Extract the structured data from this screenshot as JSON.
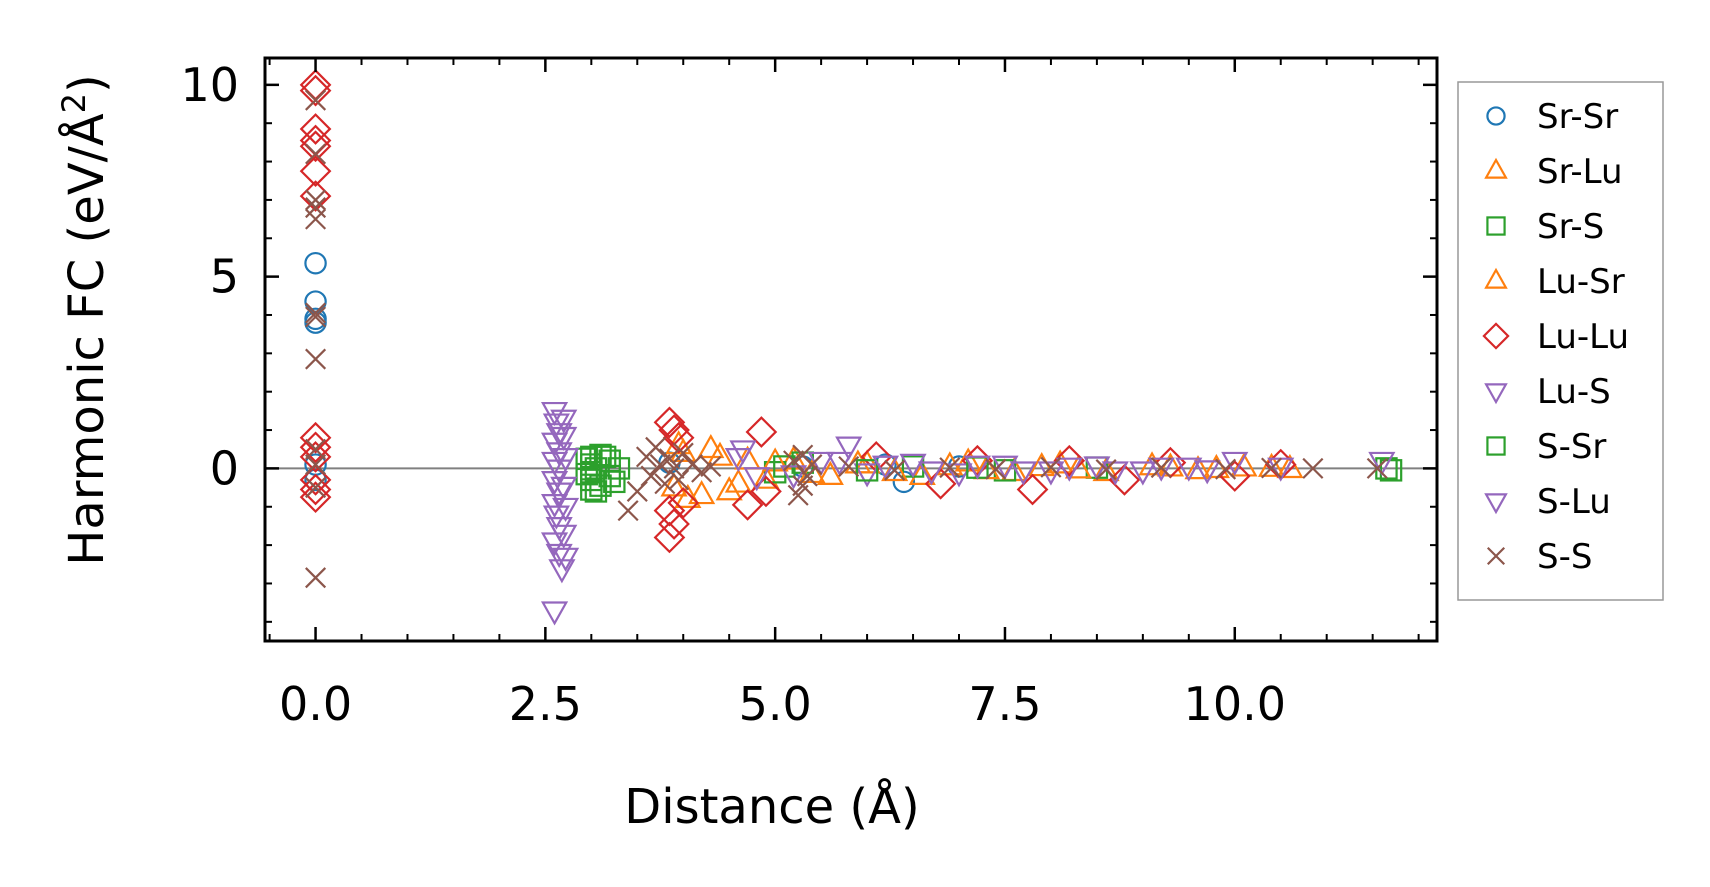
{
  "chart_data": {
    "type": "scatter",
    "title": "",
    "xlabel": "Distance (Å)",
    "ylabel_main": "Harmonic FC (eV/Å",
    "ylabel_sup": "2",
    "ylabel_close": ")",
    "xlim": [
      -0.55,
      12.2
    ],
    "ylim": [
      -4.5,
      10.7
    ],
    "xticks": [
      0.0,
      2.5,
      5.0,
      7.5,
      10.0
    ],
    "xtick_labels": [
      "0.0",
      "2.5",
      "5.0",
      "7.5",
      "10.0"
    ],
    "yticks": [
      0,
      5,
      10
    ],
    "ytick_labels": [
      "0",
      "5",
      "10"
    ],
    "zero_line": 0,
    "legend_position": "outside-right",
    "series": [
      {
        "name": "Sr-Sr",
        "marker": "circle",
        "color": "#1f77b4",
        "points": [
          [
            0,
            5.35
          ],
          [
            0,
            4.35
          ],
          [
            0,
            3.8
          ],
          [
            0,
            3.9
          ],
          [
            0,
            0.1
          ],
          [
            0,
            -0.3
          ],
          [
            6.4,
            -0.35
          ],
          [
            6.2,
            0.1
          ],
          [
            3.85,
            0.15
          ],
          [
            5.3,
            0.05
          ],
          [
            7.0,
            0.05
          ]
        ]
      },
      {
        "name": "Sr-Lu",
        "marker": "triangle-up",
        "color": "#ff7f0e",
        "points": [
          [
            3.9,
            -0.5
          ],
          [
            4.0,
            0.4
          ],
          [
            4.2,
            -0.7
          ],
          [
            4.3,
            0.5
          ],
          [
            4.5,
            -0.6
          ],
          [
            4.7,
            0.2
          ],
          [
            4.9,
            -0.3
          ],
          [
            5.2,
            0.2
          ],
          [
            5.6,
            -0.2
          ],
          [
            6.0,
            0.1
          ],
          [
            6.6,
            -0.2
          ],
          [
            7.1,
            0.15
          ],
          [
            7.6,
            -0.1
          ],
          [
            8.1,
            0.1
          ],
          [
            8.6,
            -0.1
          ],
          [
            9.1,
            0.05
          ],
          [
            9.6,
            -0.05
          ],
          [
            10.1,
            0.02
          ],
          [
            10.6,
            -0.02
          ]
        ]
      },
      {
        "name": "Sr-S",
        "marker": "square",
        "color": "#2ca02c",
        "points": [
          [
            3.0,
            0.3
          ],
          [
            3.0,
            0.1
          ],
          [
            3.0,
            -0.1
          ],
          [
            3.0,
            -0.3
          ],
          [
            3.0,
            -0.55
          ],
          [
            3.1,
            0.35
          ],
          [
            3.1,
            -0.45
          ],
          [
            3.2,
            0.2
          ],
          [
            3.2,
            -0.2
          ],
          [
            3.3,
            0.0
          ],
          [
            5.0,
            -0.1
          ],
          [
            5.3,
            0.15
          ],
          [
            6.5,
            0.05
          ],
          [
            7.5,
            -0.05
          ],
          [
            8.5,
            0.02
          ],
          [
            11.65,
            0.0
          ]
        ]
      },
      {
        "name": "Lu-Sr",
        "marker": "triangle-up",
        "color": "#ff7f0e",
        "points": [
          [
            3.95,
            0.6
          ],
          [
            4.05,
            -0.8
          ],
          [
            4.4,
            0.3
          ],
          [
            4.6,
            -0.4
          ],
          [
            5.0,
            0.15
          ],
          [
            5.4,
            -0.15
          ],
          [
            5.9,
            0.1
          ],
          [
            6.3,
            -0.1
          ],
          [
            6.9,
            0.05
          ],
          [
            7.3,
            -0.05
          ],
          [
            7.9,
            0.03
          ],
          [
            8.3,
            -0.03
          ],
          [
            9.3,
            0.02
          ],
          [
            9.8,
            -0.02
          ],
          [
            10.4,
            0.01
          ]
        ]
      },
      {
        "name": "Lu-Lu",
        "marker": "diamond",
        "color": "#d62728",
        "points": [
          [
            0,
            10.0
          ],
          [
            0,
            9.85
          ],
          [
            0,
            8.85
          ],
          [
            0,
            8.55
          ],
          [
            0,
            8.4
          ],
          [
            0,
            7.75
          ],
          [
            0,
            7.1
          ],
          [
            0,
            0.8
          ],
          [
            0,
            0.55
          ],
          [
            0,
            0.3
          ],
          [
            0,
            -0.3
          ],
          [
            0,
            -0.55
          ],
          [
            0,
            -0.75
          ],
          [
            3.85,
            1.2
          ],
          [
            3.9,
            1.0
          ],
          [
            3.95,
            0.8
          ],
          [
            3.85,
            -1.1
          ],
          [
            3.9,
            -1.45
          ],
          [
            3.85,
            -1.8
          ],
          [
            4.0,
            -0.9
          ],
          [
            4.85,
            0.95
          ],
          [
            4.9,
            -0.6
          ],
          [
            4.7,
            -0.95
          ],
          [
            6.1,
            0.3
          ],
          [
            6.8,
            -0.4
          ],
          [
            7.2,
            0.2
          ],
          [
            7.8,
            -0.55
          ],
          [
            8.2,
            0.2
          ],
          [
            8.8,
            -0.3
          ],
          [
            9.3,
            0.15
          ],
          [
            10.0,
            -0.2
          ],
          [
            10.5,
            0.1
          ]
        ]
      },
      {
        "name": "Lu-S",
        "marker": "triangle-down",
        "color": "#9467bd",
        "points": [
          [
            2.6,
            1.5
          ],
          [
            2.62,
            1.2
          ],
          [
            2.65,
            0.95
          ],
          [
            2.6,
            0.7
          ],
          [
            2.65,
            0.45
          ],
          [
            2.6,
            0.2
          ],
          [
            2.65,
            0.0
          ],
          [
            2.6,
            -0.3
          ],
          [
            2.65,
            -0.6
          ],
          [
            2.6,
            -0.9
          ],
          [
            2.62,
            -1.2
          ],
          [
            2.65,
            -1.5
          ],
          [
            2.6,
            -1.9
          ],
          [
            2.65,
            -2.2
          ],
          [
            2.68,
            -2.6
          ],
          [
            2.6,
            -3.7
          ],
          [
            4.6,
            0.3
          ],
          [
            4.8,
            -0.2
          ],
          [
            5.5,
            0.2
          ],
          [
            5.8,
            0.6
          ],
          [
            6.0,
            -0.1
          ],
          [
            6.5,
            0.15
          ],
          [
            7.0,
            -0.1
          ],
          [
            7.5,
            0.1
          ],
          [
            8.0,
            -0.05
          ],
          [
            8.5,
            0.08
          ],
          [
            9.0,
            -0.05
          ],
          [
            9.5,
            0.05
          ],
          [
            10.0,
            0.2
          ],
          [
            10.5,
            0.05
          ]
        ]
      },
      {
        "name": "S-Sr",
        "marker": "square",
        "color": "#2ca02c",
        "points": [
          [
            2.95,
            0.25
          ],
          [
            2.95,
            -0.15
          ],
          [
            3.05,
            0.0
          ],
          [
            3.05,
            -0.6
          ],
          [
            3.15,
            0.3
          ],
          [
            3.25,
            -0.35
          ],
          [
            5.1,
            0.05
          ],
          [
            6.0,
            -0.05
          ],
          [
            7.2,
            0.02
          ],
          [
            11.7,
            -0.05
          ]
        ]
      },
      {
        "name": "S-Lu",
        "marker": "triangle-down",
        "color": "#9467bd",
        "points": [
          [
            2.7,
            1.3
          ],
          [
            2.7,
            0.85
          ],
          [
            2.72,
            0.3
          ],
          [
            2.7,
            -0.45
          ],
          [
            2.72,
            -1.0
          ],
          [
            2.7,
            -1.7
          ],
          [
            2.72,
            -2.3
          ],
          [
            4.65,
            0.5
          ],
          [
            5.2,
            -0.15
          ],
          [
            5.7,
            0.2
          ],
          [
            6.2,
            0.1
          ],
          [
            6.7,
            -0.05
          ],
          [
            7.2,
            0.1
          ],
          [
            7.7,
            -0.05
          ],
          [
            8.2,
            0.05
          ],
          [
            8.7,
            -0.05
          ],
          [
            9.2,
            0.05
          ],
          [
            9.7,
            -0.02
          ],
          [
            11.6,
            0.2
          ]
        ]
      },
      {
        "name": "S-S",
        "marker": "x",
        "color": "#8c564b",
        "points": [
          [
            0,
            9.6
          ],
          [
            0,
            8.2
          ],
          [
            0,
            7.0
          ],
          [
            0,
            6.8
          ],
          [
            0,
            6.5
          ],
          [
            0,
            4.05
          ],
          [
            0,
            3.95
          ],
          [
            0,
            2.85
          ],
          [
            0,
            0.5
          ],
          [
            0,
            0.1
          ],
          [
            0,
            -0.5
          ],
          [
            0,
            -2.85
          ],
          [
            3.4,
            -1.1
          ],
          [
            3.5,
            -0.6
          ],
          [
            3.6,
            0.3
          ],
          [
            3.65,
            -0.2
          ],
          [
            3.7,
            0.55
          ],
          [
            3.75,
            0.1
          ],
          [
            3.8,
            -0.4
          ],
          [
            3.85,
            0.25
          ],
          [
            3.9,
            0.0
          ],
          [
            3.95,
            -0.3
          ],
          [
            4.0,
            0.4
          ],
          [
            4.1,
            0.1
          ],
          [
            4.2,
            -0.1
          ],
          [
            4.3,
            0.05
          ],
          [
            5.2,
            0.2
          ],
          [
            5.25,
            -0.7
          ],
          [
            5.3,
            0.35
          ],
          [
            5.35,
            -0.2
          ],
          [
            5.4,
            0.1
          ],
          [
            5.3,
            -0.45
          ],
          [
            5.8,
            0.05
          ],
          [
            6.3,
            -0.05
          ],
          [
            6.9,
            0.02
          ],
          [
            7.4,
            -0.02
          ],
          [
            8.0,
            0.03
          ],
          [
            8.6,
            -0.03
          ],
          [
            9.2,
            0.02
          ],
          [
            9.9,
            -0.02
          ],
          [
            10.4,
            0.01
          ],
          [
            10.85,
            0.0
          ],
          [
            11.55,
            0.0
          ]
        ]
      }
    ]
  }
}
